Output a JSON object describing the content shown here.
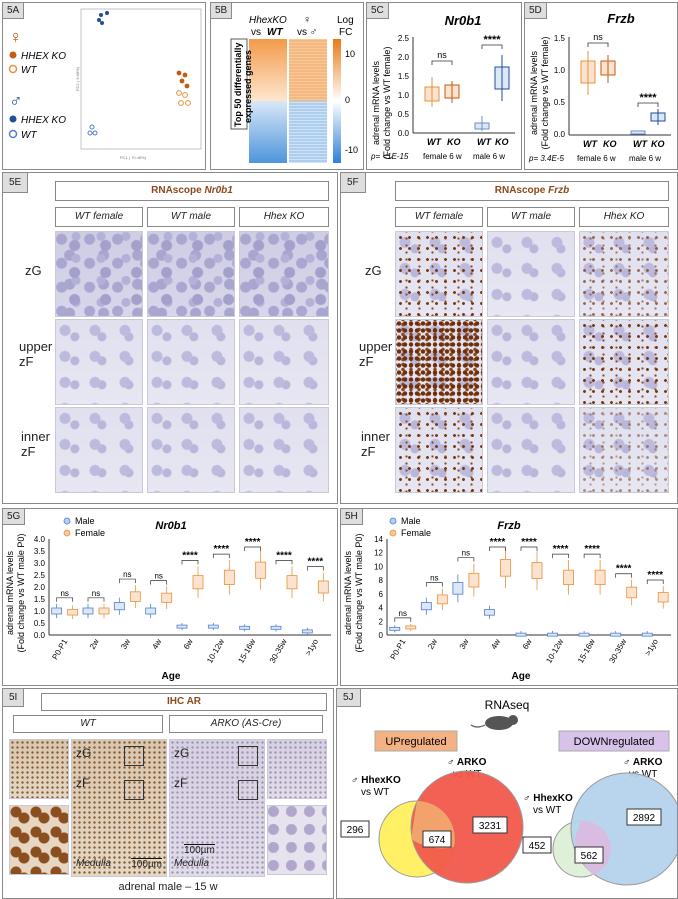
{
  "panels": {
    "a": {
      "tag": "5A",
      "female_symbol": "♀",
      "male_symbol": "♂",
      "legend": [
        "HHEX KO",
        "WT",
        "HHEX KO",
        "WT"
      ],
      "xlabel": "PC1 ( 70.48%)",
      "ylabel": "PC2 ( 9.68%)"
    },
    "b": {
      "tag": "5B",
      "title_line1": "HhexKO",
      "title_vs": "vs",
      "title_wt": "WT",
      "col2_line1": "♀",
      "col2_line2": "vs ♂",
      "legend_title_1": "Log",
      "legend_title_2": "FC",
      "side_label_1": "Top 50 differentially",
      "side_label_2": "expressed genes",
      "ticks": [
        "10",
        "0",
        "-10"
      ]
    },
    "c": {
      "tag": "5C",
      "gene": "Nr0b1",
      "ylabel_1": "adrenal mRNA levels",
      "ylabel_2": "(Fold change vs WT female)",
      "yticks": [
        "0.0",
        "0.5",
        "1.0",
        "1.5",
        "2.0",
        "2.5"
      ],
      "groups": [
        "WT",
        "KO",
        "WT",
        "KO"
      ],
      "group_labels": [
        "female 6 w",
        "male 6 w"
      ],
      "sig": [
        "ns",
        "****"
      ],
      "pval": "p= <1E-15"
    },
    "d": {
      "tag": "5D",
      "gene": "Frzb",
      "ylabel_1": "adrenal mRNA levels",
      "ylabel_2": "(Fold change vs WT female)",
      "yticks": [
        "0.0",
        "0.5",
        "1.0",
        "1.5"
      ],
      "groups": [
        "WT",
        "KO",
        "WT",
        "KO"
      ],
      "group_labels": [
        "female 6 w",
        "male 6 w"
      ],
      "sig": [
        "ns",
        "****"
      ],
      "pval": "p= 3.4E-5"
    },
    "e": {
      "tag": "5E",
      "title_prefix": "RNAscope",
      "gene": "Nr0b1",
      "cols": [
        "WT female",
        "WT male",
        "Hhex KO"
      ],
      "rows": [
        "zG",
        "upper\nzF",
        "inner\nzF"
      ]
    },
    "f": {
      "tag": "5F",
      "title_prefix": "RNAscope",
      "gene": "Frzb",
      "cols": [
        "WT female",
        "WT male",
        "Hhex KO"
      ],
      "rows": [
        "zG",
        "upper\nzF",
        "inner\nzF"
      ]
    },
    "g": {
      "tag": "5G",
      "gene": "Nr0b1",
      "legend": [
        "Male",
        "Female"
      ],
      "ylabel_1": "adrenal mRNA levels",
      "ylabel_2": "(Fold change vs WT male P0)",
      "xlabel": "Age"
    },
    "h": {
      "tag": "5H",
      "gene": "Frzb",
      "legend": [
        "Male",
        "Female"
      ],
      "ylabel_1": "adrenal mRNA levels",
      "ylabel_2": "(Fold change vs WT male P0)",
      "xlabel": "Age"
    },
    "i": {
      "tag": "5I",
      "title": "IHC AR",
      "col_wt": "WT",
      "col_arko": "ARKO (AS-Cre)",
      "zg": "zG",
      "zf": "zF",
      "medulla": "Medulla",
      "scale": "100µm",
      "caption": "adrenal male – 15 w"
    },
    "j": {
      "tag": "5J",
      "title": "RNAseq",
      "up": "UPregulated",
      "down": "DOWNregulated",
      "hhex_label": "♂ HhexKO",
      "hhex_vs": "vs WT",
      "arko_label": "♂ ARKO",
      "arko_vs": "vs WT",
      "up_counts": [
        "296",
        "674",
        "3231"
      ],
      "down_counts": [
        "452",
        "562",
        "2892"
      ]
    }
  },
  "chart_data": [
    {
      "type": "box",
      "id": "5C",
      "title": "Nr0b1",
      "categories": [
        "WT female 6 w",
        "KO female 6 w",
        "WT male 6 w",
        "KO male 6 w"
      ],
      "series": [
        {
          "name": "WT",
          "values": [
            1.0,
            null,
            0.2,
            null
          ]
        },
        {
          "name": "KO",
          "values": [
            null,
            1.05,
            null,
            1.4
          ]
        }
      ],
      "ylim": [
        0,
        2.5
      ]
    },
    {
      "type": "box",
      "id": "5D",
      "title": "Frzb",
      "categories": [
        "WT female 6 w",
        "KO female 6 w",
        "WT male 6 w",
        "KO male 6 w"
      ],
      "series": [
        {
          "name": "WT",
          "values": [
            1.0,
            null,
            0.03,
            null
          ]
        },
        {
          "name": "KO",
          "values": [
            null,
            1.1,
            null,
            0.28
          ]
        }
      ],
      "ylim": [
        0,
        1.5
      ]
    },
    {
      "type": "box",
      "id": "5G",
      "title": "Nr0b1",
      "xlabel": "Age",
      "categories": [
        "P0-P1",
        "2w",
        "3w",
        "4w",
        "6w",
        "10-12w",
        "15-16w",
        "30-35w",
        ">1yo"
      ],
      "yticks": [
        "0.0",
        "0.5",
        "1.0",
        "1.5",
        "2.0",
        "2.5",
        "3.0",
        "3.5",
        "4.0"
      ],
      "ylim": [
        0,
        4
      ],
      "series": [
        {
          "name": "Male",
          "values": [
            1.0,
            1.0,
            1.2,
            1.0,
            0.35,
            0.35,
            0.3,
            0.3,
            0.15
          ]
        },
        {
          "name": "Female",
          "values": [
            0.95,
            1.0,
            1.6,
            1.55,
            2.2,
            2.4,
            2.7,
            2.2,
            2.0
          ]
        }
      ],
      "sig": [
        "ns",
        "ns",
        "ns",
        "ns",
        "****",
        "****",
        "****",
        "****",
        "****"
      ]
    },
    {
      "type": "box",
      "id": "5H",
      "title": "Frzb",
      "xlabel": "Age",
      "categories": [
        "P0-P1",
        "2w",
        "3w",
        "4w",
        "6w",
        "10-12w",
        "15-16w",
        "30-35w",
        ">1yo"
      ],
      "yticks": [
        "0",
        "2",
        "4",
        "6",
        "8",
        "10",
        "12",
        "14"
      ],
      "ylim": [
        0,
        14
      ],
      "series": [
        {
          "name": "Male",
          "values": [
            0.9,
            4.2,
            6.8,
            3.3,
            0.05,
            0.05,
            0.05,
            0.05,
            0.05
          ]
        },
        {
          "name": "Female",
          "values": [
            1.1,
            5.2,
            8.0,
            9.8,
            9.4,
            8.4,
            8.4,
            6.2,
            5.5
          ]
        }
      ],
      "sig": [
        "ns",
        "ns",
        "ns",
        "****",
        "****",
        "****",
        "****",
        "****",
        "****"
      ]
    }
  ],
  "colors": {
    "male": "#4d7fd0",
    "male_light": "#b9cdee",
    "female": "#e8913a",
    "female_light": "#f3c89d",
    "ko_f": "#c55a11",
    "wt_f": "#f2b787",
    "ko_m": "#1f4e9a",
    "wt_m": "#6d8ccc",
    "sig": "#333333"
  }
}
